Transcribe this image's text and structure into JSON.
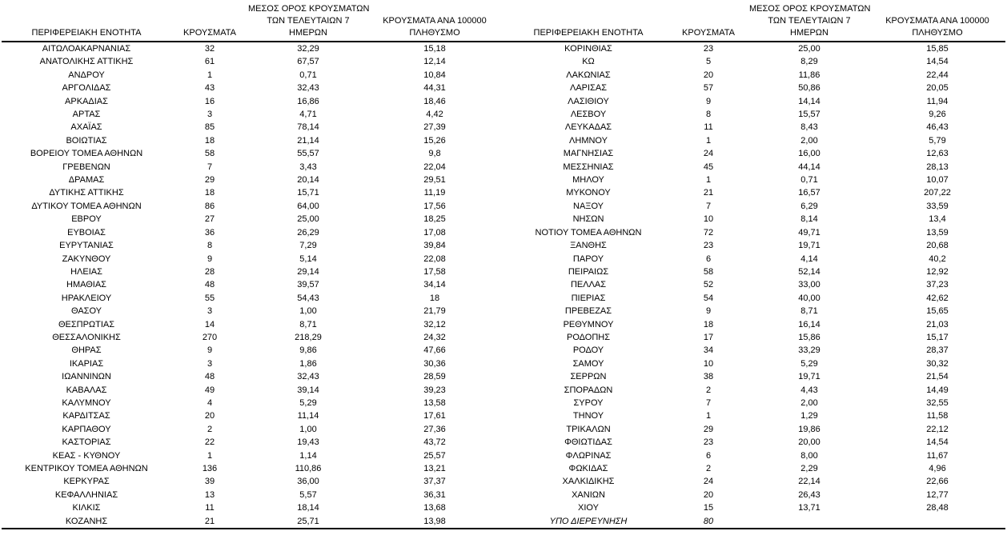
{
  "header": {
    "region": "ΠΕΡΙΦΕΡΕΙΑΚΗ ΕΝΟΤΗΤΑ",
    "cases": "ΚΡΟΥΣΜΑΤΑ",
    "avg7_line1": "ΜΕΣΟΣ ΟΡΟΣ ΚΡΟΥΣΜΑΤΩΝ",
    "avg7_line2": "ΤΩΝ ΤΕΛΕΥΤΑΙΩΝ 7",
    "avg7_line3": "ΗΜΕΡΩΝ",
    "per100k_line1": "ΚΡΟΥΣΜΑΤΑ ΑΝΑ 100000",
    "per100k_line2": "ΠΛΗΘΥΣΜΟ"
  },
  "colors": {
    "text": "#000000",
    "background": "#ffffff",
    "rule": "#000000"
  },
  "left_rows": [
    {
      "region": "ΑΙΤΩΛΟΑΚΑΡΝΑΝΙΑΣ",
      "cases": "32",
      "avg7": "32,29",
      "per100k": "15,18"
    },
    {
      "region": "ΑΝΑΤΟΛΙΚΗΣ ΑΤΤΙΚΗΣ",
      "cases": "61",
      "avg7": "67,57",
      "per100k": "12,14"
    },
    {
      "region": "ΑΝΔΡΟΥ",
      "cases": "1",
      "avg7": "0,71",
      "per100k": "10,84"
    },
    {
      "region": "ΑΡΓΟΛΙΔΑΣ",
      "cases": "43",
      "avg7": "32,43",
      "per100k": "44,31"
    },
    {
      "region": "ΑΡΚΑΔΙΑΣ",
      "cases": "16",
      "avg7": "16,86",
      "per100k": "18,46"
    },
    {
      "region": "ΑΡΤΑΣ",
      "cases": "3",
      "avg7": "4,71",
      "per100k": "4,42"
    },
    {
      "region": "ΑΧΑΪΑΣ",
      "cases": "85",
      "avg7": "78,14",
      "per100k": "27,39"
    },
    {
      "region": "ΒΟΙΩΤΙΑΣ",
      "cases": "18",
      "avg7": "21,14",
      "per100k": "15,26"
    },
    {
      "region": "ΒΟΡΕΙΟΥ ΤΟΜΕΑ ΑΘΗΝΩΝ",
      "cases": "58",
      "avg7": "55,57",
      "per100k": "9,8"
    },
    {
      "region": "ΓΡΕΒΕΝΩΝ",
      "cases": "7",
      "avg7": "3,43",
      "per100k": "22,04"
    },
    {
      "region": "ΔΡΑΜΑΣ",
      "cases": "29",
      "avg7": "20,14",
      "per100k": "29,51"
    },
    {
      "region": "ΔΥΤΙΚΗΣ ΑΤΤΙΚΗΣ",
      "cases": "18",
      "avg7": "15,71",
      "per100k": "11,19"
    },
    {
      "region": "ΔΥΤΙΚΟΥ ΤΟΜΕΑ ΑΘΗΝΩΝ",
      "cases": "86",
      "avg7": "64,00",
      "per100k": "17,56"
    },
    {
      "region": "ΕΒΡΟΥ",
      "cases": "27",
      "avg7": "25,00",
      "per100k": "18,25"
    },
    {
      "region": "ΕΥΒΟΙΑΣ",
      "cases": "36",
      "avg7": "26,29",
      "per100k": "17,08"
    },
    {
      "region": "ΕΥΡΥΤΑΝΙΑΣ",
      "cases": "8",
      "avg7": "7,29",
      "per100k": "39,84"
    },
    {
      "region": "ΖΑΚΥΝΘΟΥ",
      "cases": "9",
      "avg7": "5,14",
      "per100k": "22,08"
    },
    {
      "region": "ΗΛΕΙΑΣ",
      "cases": "28",
      "avg7": "29,14",
      "per100k": "17,58"
    },
    {
      "region": "ΗΜΑΘΙΑΣ",
      "cases": "48",
      "avg7": "39,57",
      "per100k": "34,14"
    },
    {
      "region": "ΗΡΑΚΛΕΙΟΥ",
      "cases": "55",
      "avg7": "54,43",
      "per100k": "18"
    },
    {
      "region": "ΘΑΣΟΥ",
      "cases": "3",
      "avg7": "1,00",
      "per100k": "21,79"
    },
    {
      "region": "ΘΕΣΠΡΩΤΙΑΣ",
      "cases": "14",
      "avg7": "8,71",
      "per100k": "32,12"
    },
    {
      "region": "ΘΕΣΣΑΛΟΝΙΚΗΣ",
      "cases": "270",
      "avg7": "218,29",
      "per100k": "24,32"
    },
    {
      "region": "ΘΗΡΑΣ",
      "cases": "9",
      "avg7": "9,86",
      "per100k": "47,66"
    },
    {
      "region": "ΙΚΑΡΙΑΣ",
      "cases": "3",
      "avg7": "1,86",
      "per100k": "30,36"
    },
    {
      "region": "ΙΩΑΝΝΙΝΩΝ",
      "cases": "48",
      "avg7": "32,43",
      "per100k": "28,59"
    },
    {
      "region": "ΚΑΒΑΛΑΣ",
      "cases": "49",
      "avg7": "39,14",
      "per100k": "39,23"
    },
    {
      "region": "ΚΑΛΥΜΝΟΥ",
      "cases": "4",
      "avg7": "5,29",
      "per100k": "13,58"
    },
    {
      "region": "ΚΑΡΔΙΤΣΑΣ",
      "cases": "20",
      "avg7": "11,14",
      "per100k": "17,61"
    },
    {
      "region": "ΚΑΡΠΑΘΟΥ",
      "cases": "2",
      "avg7": "1,00",
      "per100k": "27,36"
    },
    {
      "region": "ΚΑΣΤΟΡΙΑΣ",
      "cases": "22",
      "avg7": "19,43",
      "per100k": "43,72"
    },
    {
      "region": "ΚΕΑΣ - ΚΥΘΝΟΥ",
      "cases": "1",
      "avg7": "1,14",
      "per100k": "25,57"
    },
    {
      "region": "ΚΕΝΤΡΙΚΟΥ ΤΟΜΕΑ ΑΘΗΝΩΝ",
      "cases": "136",
      "avg7": "110,86",
      "per100k": "13,21"
    },
    {
      "region": "ΚΕΡΚΥΡΑΣ",
      "cases": "39",
      "avg7": "36,00",
      "per100k": "37,37"
    },
    {
      "region": "ΚΕΦΑΛΛΗΝΙΑΣ",
      "cases": "13",
      "avg7": "5,57",
      "per100k": "36,31"
    },
    {
      "region": "ΚΙΛΚΙΣ",
      "cases": "11",
      "avg7": "18,14",
      "per100k": "13,68"
    },
    {
      "region": "ΚΟΖΑΝΗΣ",
      "cases": "21",
      "avg7": "25,71",
      "per100k": "13,98"
    }
  ],
  "right_rows": [
    {
      "region": "ΚΟΡΙΝΘΙΑΣ",
      "cases": "23",
      "avg7": "25,00",
      "per100k": "15,85"
    },
    {
      "region": "ΚΩ",
      "cases": "5",
      "avg7": "8,29",
      "per100k": "14,54"
    },
    {
      "region": "ΛΑΚΩΝΙΑΣ",
      "cases": "20",
      "avg7": "11,86",
      "per100k": "22,44"
    },
    {
      "region": "ΛΑΡΙΣΑΣ",
      "cases": "57",
      "avg7": "50,86",
      "per100k": "20,05"
    },
    {
      "region": "ΛΑΣΙΘΙΟΥ",
      "cases": "9",
      "avg7": "14,14",
      "per100k": "11,94"
    },
    {
      "region": "ΛΕΣΒΟΥ",
      "cases": "8",
      "avg7": "15,57",
      "per100k": "9,26"
    },
    {
      "region": "ΛΕΥΚΑΔΑΣ",
      "cases": "11",
      "avg7": "8,43",
      "per100k": "46,43"
    },
    {
      "region": "ΛΗΜΝΟΥ",
      "cases": "1",
      "avg7": "2,00",
      "per100k": "5,79"
    },
    {
      "region": "ΜΑΓΝΗΣΙΑΣ",
      "cases": "24",
      "avg7": "16,00",
      "per100k": "12,63"
    },
    {
      "region": "ΜΕΣΣΗΝΙΑΣ",
      "cases": "45",
      "avg7": "44,14",
      "per100k": "28,13"
    },
    {
      "region": "ΜΗΛΟΥ",
      "cases": "1",
      "avg7": "0,71",
      "per100k": "10,07"
    },
    {
      "region": "ΜΥΚΟΝΟΥ",
      "cases": "21",
      "avg7": "16,57",
      "per100k": "207,22"
    },
    {
      "region": "ΝΑΞΟΥ",
      "cases": "7",
      "avg7": "6,29",
      "per100k": "33,59"
    },
    {
      "region": "ΝΗΣΩΝ",
      "cases": "10",
      "avg7": "8,14",
      "per100k": "13,4"
    },
    {
      "region": "ΝΟΤΙΟΥ ΤΟΜΕΑ ΑΘΗΝΩΝ",
      "cases": "72",
      "avg7": "49,71",
      "per100k": "13,59"
    },
    {
      "region": "ΞΑΝΘΗΣ",
      "cases": "23",
      "avg7": "19,71",
      "per100k": "20,68"
    },
    {
      "region": "ΠΑΡΟΥ",
      "cases": "6",
      "avg7": "4,14",
      "per100k": "40,2"
    },
    {
      "region": "ΠΕΙΡΑΙΩΣ",
      "cases": "58",
      "avg7": "52,14",
      "per100k": "12,92"
    },
    {
      "region": "ΠΕΛΛΑΣ",
      "cases": "52",
      "avg7": "33,00",
      "per100k": "37,23"
    },
    {
      "region": "ΠΙΕΡΙΑΣ",
      "cases": "54",
      "avg7": "40,00",
      "per100k": "42,62"
    },
    {
      "region": "ΠΡΕΒΕΖΑΣ",
      "cases": "9",
      "avg7": "8,71",
      "per100k": "15,65"
    },
    {
      "region": "ΡΕΘΥΜΝΟΥ",
      "cases": "18",
      "avg7": "16,14",
      "per100k": "21,03"
    },
    {
      "region": "ΡΟΔΟΠΗΣ",
      "cases": "17",
      "avg7": "15,86",
      "per100k": "15,17"
    },
    {
      "region": "ΡΟΔΟΥ",
      "cases": "34",
      "avg7": "33,29",
      "per100k": "28,37"
    },
    {
      "region": "ΣΑΜΟΥ",
      "cases": "10",
      "avg7": "5,29",
      "per100k": "30,32"
    },
    {
      "region": "ΣΕΡΡΩΝ",
      "cases": "38",
      "avg7": "19,71",
      "per100k": "21,54"
    },
    {
      "region": "ΣΠΟΡΑΔΩΝ",
      "cases": "2",
      "avg7": "4,43",
      "per100k": "14,49"
    },
    {
      "region": "ΣΥΡΟΥ",
      "cases": "7",
      "avg7": "2,00",
      "per100k": "32,55"
    },
    {
      "region": "ΤΗΝΟΥ",
      "cases": "1",
      "avg7": "1,29",
      "per100k": "11,58"
    },
    {
      "region": "ΤΡΙΚΑΛΩΝ",
      "cases": "29",
      "avg7": "19,86",
      "per100k": "22,12"
    },
    {
      "region": "ΦΘΙΩΤΙΔΑΣ",
      "cases": "23",
      "avg7": "20,00",
      "per100k": "14,54"
    },
    {
      "region": "ΦΛΩΡΙΝΑΣ",
      "cases": "6",
      "avg7": "8,00",
      "per100k": "11,67"
    },
    {
      "region": "ΦΩΚΙΔΑΣ",
      "cases": "2",
      "avg7": "2,29",
      "per100k": "4,96"
    },
    {
      "region": "ΧΑΛΚΙΔΙΚΗΣ",
      "cases": "24",
      "avg7": "22,14",
      "per100k": "22,66"
    },
    {
      "region": "ΧΑΝΙΩΝ",
      "cases": "20",
      "avg7": "26,43",
      "per100k": "12,77"
    },
    {
      "region": "ΧΙΟΥ",
      "cases": "15",
      "avg7": "13,71",
      "per100k": "28,48"
    },
    {
      "region": "ΥΠΟ ΔΙΕΡΕΥΝΗΣΗ",
      "cases": "80",
      "avg7": "",
      "per100k": "",
      "italic": true
    }
  ]
}
